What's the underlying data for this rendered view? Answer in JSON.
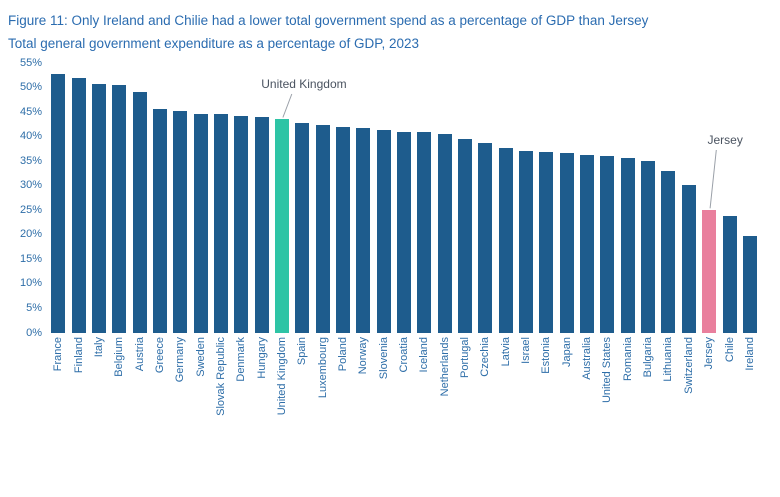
{
  "colors": {
    "title": "#2B6CB0",
    "subtitle": "#2B6CB0",
    "axis_label": "#2E6EA8",
    "bar": "#1E5C8D",
    "highlight_uk": "#2EC4A5",
    "highlight_jersey": "#E97F9D",
    "annotation_text": "#4A5360",
    "leader_line": "#9AA0A8"
  },
  "chart_data": {
    "type": "bar",
    "title": "Figure 11: Only Ireland and Chilie had a lower total government spend as a percentage of GDP than Jersey",
    "subtitle": "Total general government expenditure as a percentage of GDP, 2023",
    "xlabel": "",
    "ylabel": "",
    "ylim": [
      0,
      55
    ],
    "ytick_step": 5,
    "ytick_suffix": "%",
    "grid": false,
    "legend": "none",
    "bar_color": "#1E5C8D",
    "categories": [
      "France",
      "Finland",
      "Italy",
      "Belgium",
      "Austria",
      "Greece",
      "Germany",
      "Sweden",
      "Slovak Republic",
      "Denmark",
      "Hungary",
      "United Kingdom",
      "Spain",
      "Luxembourg",
      "Poland",
      "Norway",
      "Slovenia",
      "Croatia",
      "Iceland",
      "Netherlands",
      "Portugal",
      "Czechia",
      "Latvia",
      "Israel",
      "Estonia",
      "Japan",
      "Australia",
      "United States",
      "Romania",
      "Bulgaria",
      "Lithuania",
      "Switzerland",
      "Jersey",
      "Chile",
      "Ireland"
    ],
    "values": [
      52.7,
      51.8,
      50.7,
      50.4,
      49.0,
      45.6,
      45.2,
      44.6,
      44.5,
      44.2,
      44.0,
      43.5,
      42.6,
      42.2,
      41.8,
      41.6,
      41.2,
      40.8,
      40.8,
      40.5,
      39.5,
      38.6,
      37.5,
      37.0,
      36.7,
      36.6,
      36.2,
      36.0,
      35.5,
      35.0,
      33.0,
      30.0,
      25.0,
      23.7,
      19.6
    ],
    "highlights": [
      {
        "category": "United Kingdom",
        "color": "#2EC4A5"
      },
      {
        "category": "Jersey",
        "color": "#E97F9D"
      }
    ],
    "annotations": [
      {
        "text": "United Kingdom",
        "target": "United Kingdom"
      },
      {
        "text": "Jersey",
        "target": "Jersey"
      }
    ]
  }
}
